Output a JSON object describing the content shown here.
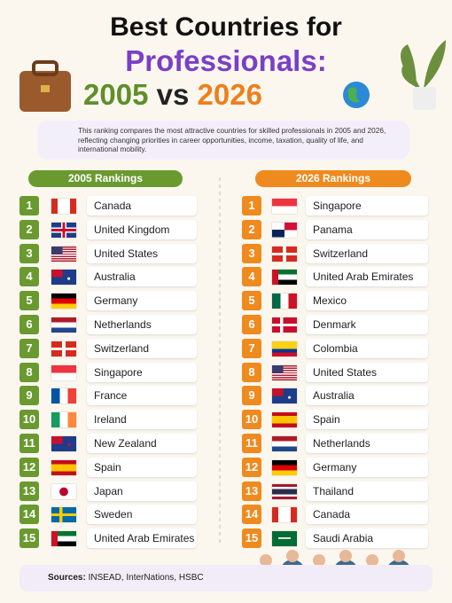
{
  "header": {
    "title_line1": "Best Countries for",
    "title_line2": "Professionals:",
    "title_year1": "2005",
    "title_vs": "vs",
    "title_year2": "2026"
  },
  "intro": "This ranking compares the most attractive countries for skilled professionals in 2005 and 2026, reflecting changing priorities in career opportunities, income, taxation, quality of life, and international mobility.",
  "lists": [
    {
      "heading": "2005 Rankings",
      "rows": [
        {
          "rank": 1,
          "country": "Canada"
        },
        {
          "rank": 2,
          "country": "United Kingdom"
        },
        {
          "rank": 3,
          "country": "United States"
        },
        {
          "rank": 4,
          "country": "Australia"
        },
        {
          "rank": 5,
          "country": "Germany"
        },
        {
          "rank": 6,
          "country": "Netherlands"
        },
        {
          "rank": 7,
          "country": "Switzerland"
        },
        {
          "rank": 8,
          "country": "Singapore"
        },
        {
          "rank": 9,
          "country": "France"
        },
        {
          "rank": 10,
          "country": "Ireland"
        },
        {
          "rank": 11,
          "country": "New Zealand"
        },
        {
          "rank": 12,
          "country": "Spain"
        },
        {
          "rank": 13,
          "country": "Japan"
        },
        {
          "rank": 14,
          "country": "Sweden"
        },
        {
          "rank": 15,
          "country": "United Arab Emirates"
        }
      ]
    },
    {
      "heading": "2026 Rankings",
      "rows": [
        {
          "rank": 1,
          "country": "Singapore"
        },
        {
          "rank": 2,
          "country": "Panama"
        },
        {
          "rank": 3,
          "country": "Switzerland"
        },
        {
          "rank": 4,
          "country": "United Arab Emirates"
        },
        {
          "rank": 5,
          "country": "Mexico"
        },
        {
          "rank": 6,
          "country": "Denmark"
        },
        {
          "rank": 7,
          "country": "Colombia"
        },
        {
          "rank": 8,
          "country": "United States"
        },
        {
          "rank": 9,
          "country": "Australia"
        },
        {
          "rank": 10,
          "country": "Spain"
        },
        {
          "rank": 11,
          "country": "Netherlands"
        },
        {
          "rank": 12,
          "country": "Germany"
        },
        {
          "rank": 13,
          "country": "Thailand"
        },
        {
          "rank": 14,
          "country": "Canada"
        },
        {
          "rank": 15,
          "country": "Saudi Arabia"
        }
      ]
    }
  ],
  "footer": {
    "label": "Sources:",
    "text": "INSEAD, InterNations, HSBC"
  }
}
